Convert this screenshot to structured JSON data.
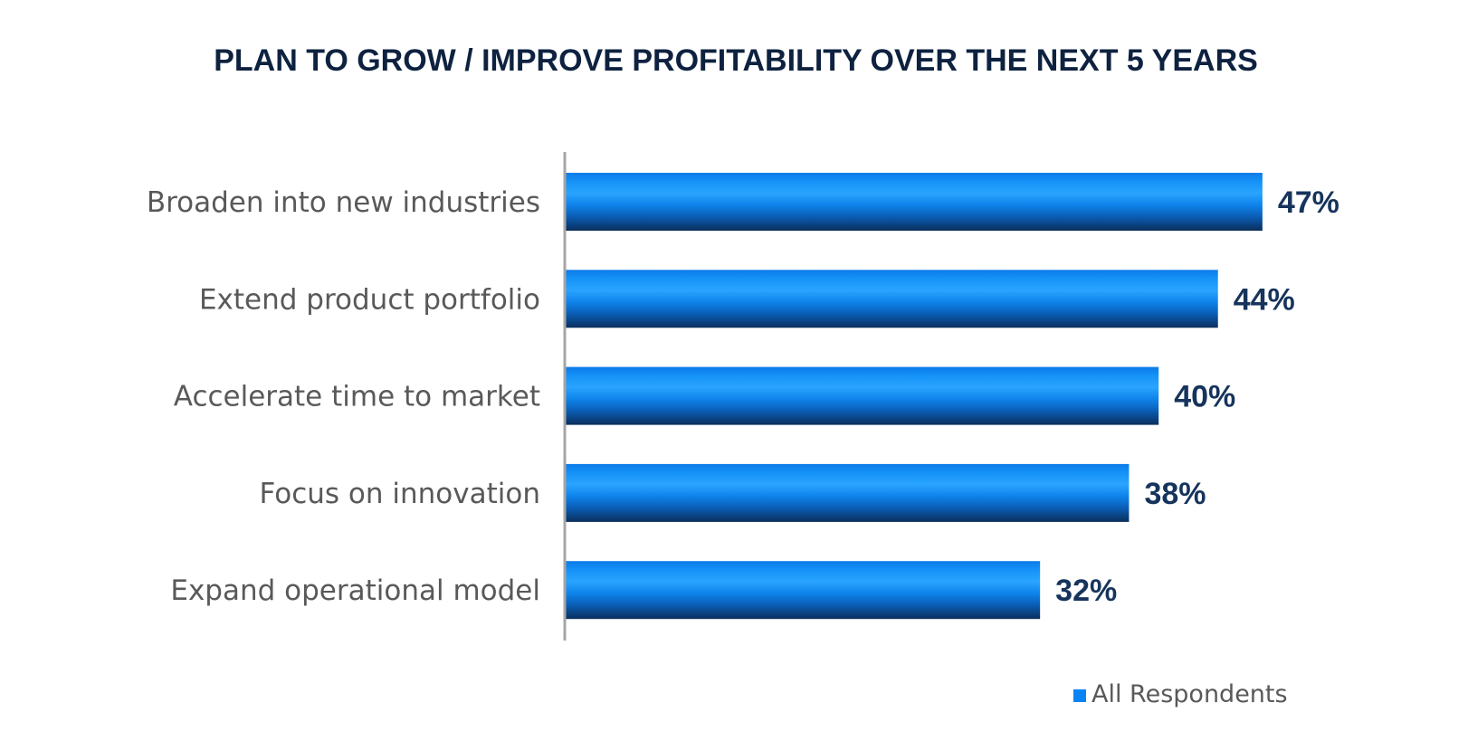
{
  "chart_data": {
    "type": "bar",
    "orientation": "horizontal",
    "title": "PLAN TO GROW / IMPROVE PROFITABILITY OVER THE NEXT 5 YEARS",
    "categories": [
      "Broaden into new industries",
      "Extend product portfolio",
      "Accelerate time to market",
      "Focus on innovation",
      "Expand operational model"
    ],
    "series": [
      {
        "name": "All Respondents",
        "values": [
          47,
          44,
          40,
          38,
          32
        ],
        "value_labels": [
          "47%",
          "44%",
          "40%",
          "38%",
          "32%"
        ],
        "color": "#0a84f5"
      }
    ],
    "xlabel": "",
    "ylabel": "",
    "xlim": [
      0,
      60
    ],
    "value_unit": "%",
    "grid": false,
    "x_axis_visible": false,
    "legend": {
      "position": "bottom-right",
      "entries": [
        "All Respondents"
      ]
    },
    "colors": {
      "bar_top": "#0b7be8",
      "bar_highlight": "#2aa4ff",
      "bar_bottom": "#0a2e5c",
      "axis": "#a6a6a6",
      "title": "#0e2240",
      "value_label": "#16345c",
      "category_label": "#595959"
    }
  }
}
